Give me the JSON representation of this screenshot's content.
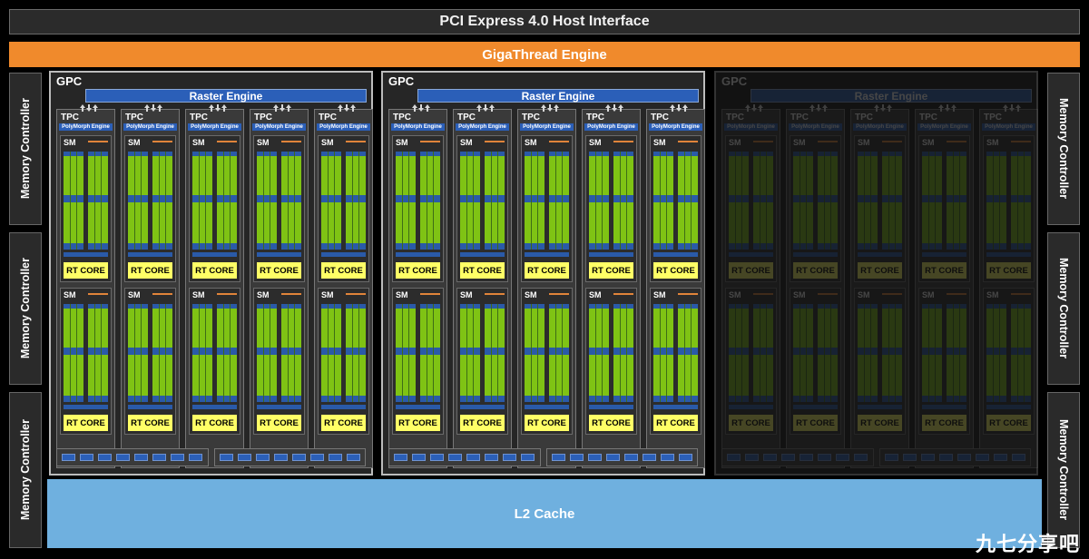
{
  "pcie_label": "PCI Express 4.0 Host Interface",
  "gigathread_label": "GigaThread Engine",
  "memory_controller_label": "Memory Controller",
  "l2_label": "L2 Cache",
  "gpc_label": "GPC",
  "raster_label": "Raster Engine",
  "tpc_label": "TPC",
  "polymorph_label": "PolyMorph Engine",
  "sm_label": "SM",
  "rt_core_label": "RT CORE",
  "gpcs": [
    {
      "enabled": true
    },
    {
      "enabled": true
    },
    {
      "enabled": false
    }
  ],
  "tpcs_per_gpc": 5,
  "watermark": "九七分享吧",
  "colors": {
    "gigathread": "#f08a2c",
    "l2": "#6fb0df",
    "raster": "#2b5fb8",
    "cuda": "#7fc314",
    "rt_core": "#ffff66"
  }
}
